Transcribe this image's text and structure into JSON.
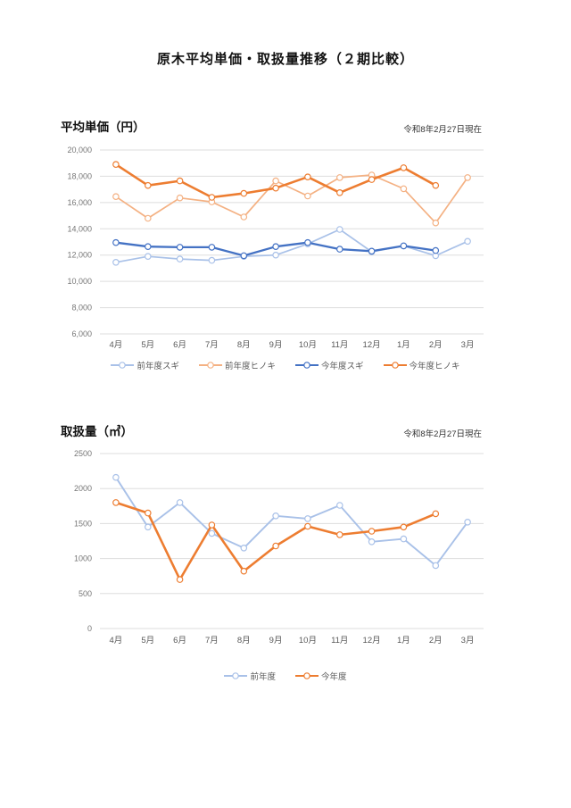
{
  "page": {
    "title": "原木平均単価・取扱量推移（２期比較）"
  },
  "chart_data": [
    {
      "type": "line",
      "title": "平均単価（円）",
      "subtitle": "令和8年2月27日現在",
      "categories": [
        "4月",
        "5月",
        "6月",
        "7月",
        "8月",
        "9月",
        "10月",
        "11月",
        "12月",
        "1月",
        "2月",
        "3月"
      ],
      "series": [
        {
          "name": "前年度スギ",
          "color": "#A9C1E8",
          "width": 1.7,
          "values": [
            11450,
            11900,
            11700,
            11600,
            11900,
            12000,
            12850,
            13950,
            12250,
            12700,
            11950,
            13050
          ]
        },
        {
          "name": "前年度ヒノキ",
          "color": "#F4B183",
          "width": 1.7,
          "values": [
            16450,
            14800,
            16350,
            16050,
            14900,
            17650,
            16500,
            17900,
            18100,
            17050,
            14450,
            17900
          ]
        },
        {
          "name": "今年度スギ",
          "color": "#4472C4",
          "width": 2.3,
          "values": [
            12950,
            12650,
            12600,
            12600,
            11950,
            12650,
            12950,
            12450,
            12300,
            12700,
            12350,
            null
          ]
        },
        {
          "name": "今年度ヒノキ",
          "color": "#ED7D31",
          "width": 2.6,
          "values": [
            18900,
            17300,
            17650,
            16400,
            16700,
            17100,
            17950,
            16750,
            17750,
            18650,
            17300,
            null
          ]
        }
      ],
      "ylim": [
        6000,
        20000
      ],
      "ytick_step": 2000,
      "yticks": [
        "20,000",
        "18,000",
        "16,000",
        "14,000",
        "12,000",
        "10,000",
        "8,000",
        "6,000"
      ],
      "grid": true,
      "legend_position": "bottom"
    },
    {
      "type": "line",
      "title": "取扱量（㎥）",
      "subtitle": "令和8年2月27日現在",
      "categories": [
        "4月",
        "5月",
        "6月",
        "7月",
        "8月",
        "9月",
        "10月",
        "11月",
        "12月",
        "1月",
        "2月",
        "3月"
      ],
      "series": [
        {
          "name": "前年度",
          "color": "#A9C1E8",
          "width": 1.9,
          "values": [
            2160,
            1450,
            1800,
            1360,
            1150,
            1610,
            1570,
            1760,
            1240,
            1280,
            900,
            1520
          ]
        },
        {
          "name": "今年度",
          "color": "#ED7D31",
          "width": 2.6,
          "values": [
            1800,
            1650,
            700,
            1480,
            820,
            1180,
            1460,
            1340,
            1390,
            1450,
            1640,
            null
          ]
        }
      ],
      "ylim": [
        0,
        2500
      ],
      "ytick_step": 500,
      "yticks": [
        "2500",
        "2000",
        "1500",
        "1000",
        "500",
        "0"
      ],
      "grid": true,
      "legend_position": "bottom"
    }
  ],
  "style": {
    "grid_color": "#DDDDDD",
    "ytick_color": "#767676",
    "xtick_color": "#595959",
    "marker_fill": "#FFFFFF"
  }
}
